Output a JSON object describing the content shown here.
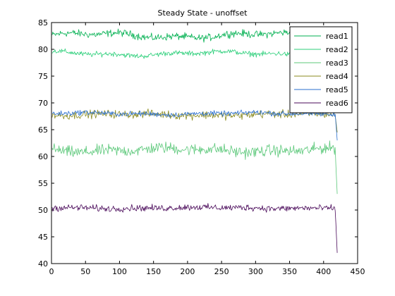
{
  "chart_data": {
    "type": "line",
    "title": "Steady State - unoffset",
    "xlabel": "",
    "ylabel": "",
    "xlim": [
      0,
      450
    ],
    "ylim": [
      40,
      85
    ],
    "xticks": [
      0,
      50,
      100,
      150,
      200,
      250,
      300,
      350,
      400,
      450
    ],
    "yticks": [
      40,
      45,
      50,
      55,
      60,
      65,
      70,
      75,
      80,
      85
    ],
    "grid": false,
    "legend_position": "top-right",
    "n_samples": 420,
    "series": [
      {
        "name": "read1",
        "color": "#00b050",
        "base": 82.6,
        "noise": 0.5,
        "wave_amp": 0.4,
        "end_value": 82.0
      },
      {
        "name": "read2",
        "color": "#2ccf7a",
        "base": 79.2,
        "noise": 0.35,
        "wave_amp": 0.3,
        "end_value": 79.0
      },
      {
        "name": "read3",
        "color": "#5cc87a",
        "base": 61.2,
        "noise": 0.8,
        "wave_amp": 0.3,
        "end_value": 53.0
      },
      {
        "name": "read4",
        "color": "#8a8a1e",
        "base": 67.8,
        "noise": 0.55,
        "wave_amp": 0.15,
        "end_value": 64.5
      },
      {
        "name": "read5",
        "color": "#2a6fcf",
        "base": 68.0,
        "noise": 0.35,
        "wave_amp": 0.15,
        "end_value": 63.0
      },
      {
        "name": "read6",
        "color": "#4a0a5a",
        "base": 50.4,
        "noise": 0.45,
        "wave_amp": 0.1,
        "end_value": 42.0
      }
    ]
  }
}
